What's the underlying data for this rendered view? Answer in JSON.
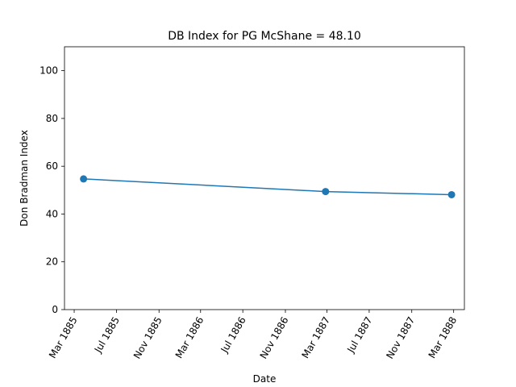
{
  "chart_data": {
    "type": "line",
    "title": "DB Index for PG McShane = 48.10",
    "xlabel": "Date",
    "ylabel": "Don Bradman Index",
    "ylim": [
      0,
      110
    ],
    "xlim": [
      "1885-02-01",
      "1888-04-01"
    ],
    "yticks": [
      0,
      20,
      40,
      60,
      80,
      100
    ],
    "xticks": [
      {
        "date": "1885-03-01",
        "label": "Mar 1885"
      },
      {
        "date": "1885-07-01",
        "label": "Jul 1885"
      },
      {
        "date": "1885-11-01",
        "label": "Nov 1885"
      },
      {
        "date": "1886-03-01",
        "label": "Mar 1886"
      },
      {
        "date": "1886-07-01",
        "label": "Jul 1886"
      },
      {
        "date": "1886-11-01",
        "label": "Nov 1886"
      },
      {
        "date": "1887-03-01",
        "label": "Mar 1887"
      },
      {
        "date": "1887-07-01",
        "label": "Jul 1887"
      },
      {
        "date": "1887-11-01",
        "label": "Nov 1887"
      },
      {
        "date": "1888-03-01",
        "label": "Mar 1888"
      }
    ],
    "series": [
      {
        "color": "#1f77b4",
        "x": [
          "1885-03-28",
          "1887-02-25",
          "1888-02-24"
        ],
        "y": [
          54.7,
          49.4,
          48.1
        ]
      }
    ],
    "grid": false
  }
}
